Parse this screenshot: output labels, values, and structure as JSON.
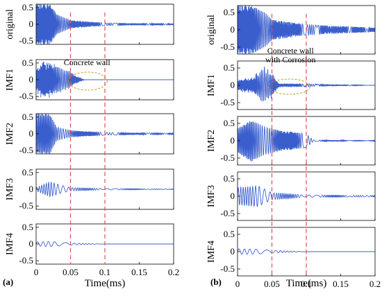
{
  "chart_data": [
    {
      "panel_label": "(a)",
      "type": "line",
      "xlabel": "Time(ms)",
      "xlim": [
        0,
        0.2
      ],
      "xticks": [
        0,
        0.05,
        0.1,
        0.15,
        0.2
      ],
      "x_tick_labels": [
        "0",
        "0.05",
        "0.1",
        "0.15",
        "0.2"
      ],
      "vlines": [
        0.05,
        0.1
      ],
      "annotation": {
        "text_lines": [
          "Concrete wall"
        ],
        "subplot": "IMF1"
      },
      "subplots": [
        {
          "ylabel": "original",
          "ylim": [
            -0.6,
            0.6
          ],
          "yticks": [
            -0.5,
            0,
            0.5
          ],
          "y_tick_labels": [
            "-0.5",
            "0",
            "0.5"
          ],
          "series": {
            "description": "dense saturated oscillation to ~0.03 ms, decaying ringing after",
            "envelope": [
              [
                0,
                0.6
              ],
              [
                0.02,
                0.6
              ],
              [
                0.03,
                0.3
              ],
              [
                0.05,
                0.12
              ],
              [
                0.1,
                0.04
              ],
              [
                0.2,
                0.02
              ]
            ]
          }
        },
        {
          "ylabel": "IMF1",
          "ylim": [
            -0.6,
            0.6
          ],
          "yticks": [
            -0.5,
            0,
            0.5
          ],
          "y_tick_labels": [
            "-0.5",
            "0",
            "0.5"
          ],
          "series": {
            "description": "noisy high frequency burst ending near 0.07 ms",
            "envelope": [
              [
                0,
                0.35
              ],
              [
                0.01,
                0.5
              ],
              [
                0.03,
                0.35
              ],
              [
                0.05,
                0.2
              ],
              [
                0.07,
                0.0
              ],
              [
                0.2,
                0.0
              ]
            ]
          }
        },
        {
          "ylabel": "IMF2",
          "ylim": [
            -0.6,
            0.6
          ],
          "yticks": [
            -0.5,
            0,
            0.5
          ],
          "y_tick_labels": [
            "-0.5",
            "0",
            "0.5"
          ],
          "series": {
            "description": "saturated early, decaying oscillation",
            "envelope": [
              [
                0,
                0.6
              ],
              [
                0.02,
                0.6
              ],
              [
                0.03,
                0.2
              ],
              [
                0.05,
                0.1
              ],
              [
                0.1,
                0.04
              ],
              [
                0.2,
                0.02
              ]
            ]
          }
        },
        {
          "ylabel": "IMF3",
          "ylim": [
            -0.6,
            0.6
          ],
          "yticks": [
            -0.5,
            0,
            0.5
          ],
          "y_tick_labels": [
            "-0.5",
            "0",
            "0.5"
          ],
          "series": {
            "description": "low frequency wave peaking ~0.02 ms",
            "envelope": [
              [
                0,
                0.05
              ],
              [
                0.02,
                0.22
              ],
              [
                0.04,
                0.1
              ],
              [
                0.05,
                0.05
              ],
              [
                0.1,
                0.02
              ],
              [
                0.2,
                0.01
              ]
            ]
          }
        },
        {
          "ylabel": "IMF4",
          "ylim": [
            -0.6,
            0.6
          ],
          "yticks": [
            -0.5,
            0,
            0.5
          ],
          "y_tick_labels": [
            "-0.5",
            "0",
            "0.5"
          ],
          "series": {
            "description": "very low amplitude slow wave",
            "envelope": [
              [
                0,
                0.06
              ],
              [
                0.02,
                0.08
              ],
              [
                0.05,
                0.03
              ],
              [
                0.1,
                0.0
              ],
              [
                0.2,
                0.0
              ]
            ]
          }
        }
      ]
    },
    {
      "panel_label": "(b)",
      "type": "line",
      "xlabel": "Time(ms)",
      "xlim": [
        0,
        0.2
      ],
      "xticks": [
        0,
        0.05,
        0.1,
        0.15,
        0.2
      ],
      "x_tick_labels": [
        "0",
        "0.05",
        "0.1",
        "0.15",
        "0.2"
      ],
      "vlines": [
        0.05,
        0.1
      ],
      "annotation": {
        "text_lines": [
          "Concrete wall",
          "with Corrosion"
        ],
        "subplot": "IMF1"
      },
      "subplots": [
        {
          "ylabel": "original",
          "ylim": [
            -0.7,
            0.7
          ],
          "yticks": [
            -0.5,
            0,
            0.5
          ],
          "y_tick_labels": [
            "-0.5",
            "0",
            "0.5"
          ],
          "series": {
            "description": "large oscillation decaying slowly, ringing beyond 0.1 ms",
            "envelope": [
              [
                0,
                0.7
              ],
              [
                0.02,
                0.7
              ],
              [
                0.04,
                0.5
              ],
              [
                0.05,
                0.3
              ],
              [
                0.1,
                0.15
              ],
              [
                0.2,
                0.06
              ]
            ]
          }
        },
        {
          "ylabel": "IMF1",
          "ylim": [
            -0.7,
            0.7
          ],
          "yticks": [
            -0.5,
            0,
            0.5
          ],
          "y_tick_labels": [
            "-0.5",
            "0",
            "0.5"
          ],
          "series": {
            "description": "high frequency burst with peak near 0.045 ms, then ~0",
            "envelope": [
              [
                0,
                0.15
              ],
              [
                0.02,
                0.18
              ],
              [
                0.04,
                0.45
              ],
              [
                0.05,
                0.3
              ],
              [
                0.06,
                0.05
              ],
              [
                0.2,
                0.0
              ]
            ]
          }
        },
        {
          "ylabel": "IMF2",
          "ylim": [
            -0.7,
            0.7
          ],
          "yticks": [
            -0.5,
            0,
            0.5
          ],
          "y_tick_labels": [
            "-0.5",
            "0",
            "0.5"
          ],
          "series": {
            "description": "strong oscillation to ~0.1 ms, small after",
            "envelope": [
              [
                0,
                0.35
              ],
              [
                0.02,
                0.6
              ],
              [
                0.04,
                0.4
              ],
              [
                0.06,
                0.3
              ],
              [
                0.1,
                0.2
              ],
              [
                0.11,
                0.02
              ],
              [
                0.2,
                0.01
              ]
            ]
          }
        },
        {
          "ylabel": "IMF3",
          "ylim": [
            -0.7,
            0.7
          ],
          "yticks": [
            -0.5,
            0,
            0.5
          ],
          "y_tick_labels": [
            "-0.5",
            "0",
            "0.5"
          ],
          "series": {
            "description": "wave train ending near 0.05 ms",
            "envelope": [
              [
                0,
                0.25
              ],
              [
                0.03,
                0.3
              ],
              [
                0.05,
                0.1
              ],
              [
                0.1,
                0.03
              ],
              [
                0.2,
                0.02
              ]
            ]
          }
        },
        {
          "ylabel": "IMF4",
          "ylim": [
            -0.7,
            0.7
          ],
          "yticks": [
            -0.5,
            0,
            0.5
          ],
          "y_tick_labels": [
            "-0.5",
            "0",
            "0.5"
          ],
          "series": {
            "description": "small slow oscillation up to 0.05 ms",
            "envelope": [
              [
                0,
                0.08
              ],
              [
                0.03,
                0.07
              ],
              [
                0.05,
                0.04
              ],
              [
                0.1,
                0.0
              ],
              [
                0.2,
                0.0
              ]
            ]
          }
        }
      ]
    }
  ],
  "colors": {
    "line": "#3a5fcd",
    "vline": "#d9534f",
    "ellipse": "#c8962e",
    "axis": "#000000"
  }
}
